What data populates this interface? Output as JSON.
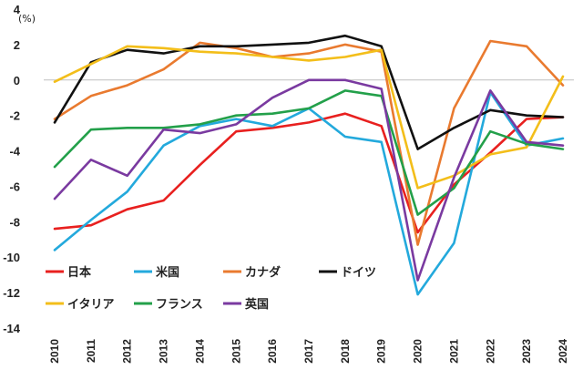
{
  "chart_data": {
    "type": "line",
    "title": "",
    "unit_label": "(%)",
    "xlabel": "",
    "ylabel": "",
    "ylim": [
      -14,
      4
    ],
    "yticks": [
      4,
      2,
      0,
      -2,
      -4,
      -6,
      -8,
      -10,
      -12,
      -14
    ],
    "grid": false,
    "legend_position": "bottom-left",
    "categories": [
      "2010",
      "2011",
      "2012",
      "2013",
      "2014",
      "2015",
      "2016",
      "2017",
      "2018",
      "2019",
      "2020",
      "2021",
      "2022",
      "2023",
      "2024"
    ],
    "series": [
      {
        "name": "日本",
        "color": "#e8201f",
        "values": [
          -8.4,
          -8.2,
          -7.3,
          -6.8,
          -4.8,
          -2.9,
          -2.7,
          -2.4,
          -1.9,
          -2.6,
          -8.6,
          -5.9,
          -4.1,
          -2.2,
          -2.1
        ]
      },
      {
        "name": "米国",
        "color": "#23a9dc",
        "values": [
          -9.6,
          -7.9,
          -6.3,
          -3.7,
          -2.6,
          -2.2,
          -2.6,
          -1.6,
          -3.2,
          -3.5,
          -12.1,
          -9.2,
          -0.7,
          -3.7,
          -3.3
        ]
      },
      {
        "name": "カナダ",
        "color": "#e97a2f",
        "values": [
          -2.2,
          -0.9,
          -0.3,
          0.6,
          2.1,
          1.8,
          1.3,
          1.5,
          2.0,
          1.6,
          -9.3,
          -1.6,
          2.2,
          1.9,
          -0.3
        ]
      },
      {
        "name": "ドイツ",
        "color": "#111111",
        "values": [
          -2.4,
          1.0,
          1.7,
          1.5,
          1.9,
          1.9,
          2.0,
          2.1,
          2.5,
          1.9,
          -3.9,
          -2.7,
          -1.7,
          -2.0,
          -2.1
        ]
      },
      {
        "name": "イタリア",
        "color": "#f3be1a",
        "values": [
          -0.1,
          0.9,
          1.9,
          1.8,
          1.6,
          1.5,
          1.3,
          1.1,
          1.3,
          1.7,
          -6.1,
          -5.4,
          -4.2,
          -3.8,
          0.2
        ]
      },
      {
        "name": "フランス",
        "color": "#23a04a",
        "values": [
          -4.9,
          -2.8,
          -2.7,
          -2.7,
          -2.5,
          -2.0,
          -1.9,
          -1.6,
          -0.6,
          -0.9,
          -7.6,
          -6.1,
          -2.9,
          -3.6,
          -3.9
        ]
      },
      {
        "name": "英国",
        "color": "#7a3aa0",
        "values": [
          -6.7,
          -4.5,
          -5.4,
          -2.8,
          -3.0,
          -2.5,
          -1.0,
          0.0,
          0.0,
          -0.5,
          -11.3,
          -5.5,
          -0.6,
          -3.5,
          -3.7
        ]
      }
    ]
  }
}
